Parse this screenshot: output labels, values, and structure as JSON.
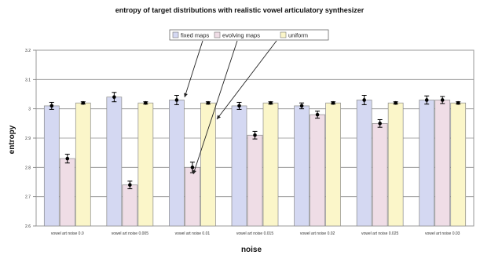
{
  "chart_data": {
    "type": "bar",
    "title": "entropy of target distributions with realistic vowel articulatory synthesizer",
    "xlabel": "noise",
    "ylabel": "entropy",
    "ylim": [
      2.6,
      3.2
    ],
    "yticks": [
      "2.6",
      "2.7",
      "2.8",
      "2.9",
      "3",
      "3.1",
      "3.2"
    ],
    "grid": true,
    "legend_position": "top",
    "categories": [
      "vowel art noise 0.0",
      "vowel art noise 0.005",
      "vowel art noise 0.01",
      "vowel art noise 0.015",
      "vowel art noise 0.02",
      "vowel art noise 0.025",
      "vowel art noise 0.03"
    ],
    "series": [
      {
        "name": "fixed maps",
        "color": "#d4d8f2",
        "values": [
          3.01,
          3.04,
          3.03,
          3.01,
          3.01,
          3.03,
          3.03
        ],
        "errors": [
          0.012,
          0.016,
          0.016,
          0.012,
          0.01,
          0.016,
          0.014
        ]
      },
      {
        "name": "evolving maps",
        "color": "#efdde6",
        "values": [
          2.83,
          2.74,
          2.8,
          2.91,
          2.98,
          2.95,
          3.03
        ],
        "errors": [
          0.015,
          0.013,
          0.018,
          0.013,
          0.012,
          0.013,
          0.012
        ]
      },
      {
        "name": "uniform",
        "color": "#fbf6c9",
        "values": [
          3.02,
          3.02,
          3.02,
          3.02,
          3.02,
          3.02,
          3.02
        ],
        "errors": [
          0.004,
          0.004,
          0.004,
          0.004,
          0.004,
          0.004,
          0.004
        ]
      }
    ]
  }
}
